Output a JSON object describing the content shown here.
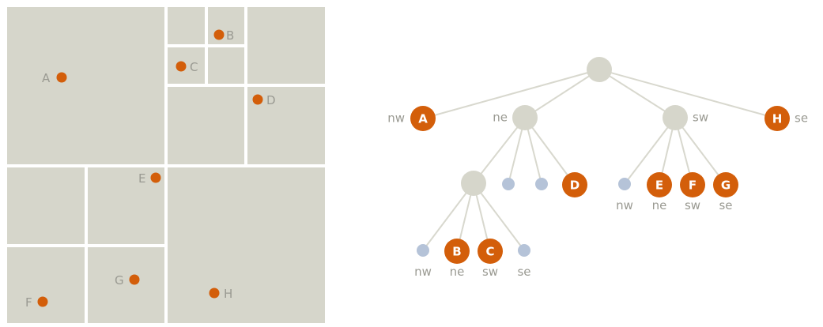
{
  "quadrant_map": {
    "points": [
      {
        "id": "A",
        "label": "A"
      },
      {
        "id": "B",
        "label": "B"
      },
      {
        "id": "C",
        "label": "C"
      },
      {
        "id": "D",
        "label": "D"
      },
      {
        "id": "E",
        "label": "E"
      },
      {
        "id": "F",
        "label": "F"
      },
      {
        "id": "G",
        "label": "G"
      },
      {
        "id": "H",
        "label": "H"
      }
    ],
    "colors": {
      "cell": "#d6d6cb",
      "point": "#d35e0a",
      "label": "#9a9a92",
      "divider": "#ffffff"
    }
  },
  "quadtree": {
    "root": {
      "children": [
        "nw",
        "ne",
        "sw",
        "se"
      ]
    },
    "top_level": [
      {
        "id": "A",
        "label": "A",
        "quadrant": "nw"
      },
      {
        "id": "ne",
        "label": "",
        "quadrant": "ne"
      },
      {
        "id": "sw",
        "label": "",
        "quadrant": "sw"
      },
      {
        "id": "H",
        "label": "H",
        "quadrant": "se"
      }
    ],
    "quadrant_labels": {
      "nw": "nw",
      "ne": "ne",
      "sw": "sw",
      "se": "se"
    },
    "ne_children": [
      {
        "id": "ne-nw",
        "kind": "internal"
      },
      {
        "id": "ne-ne",
        "kind": "empty"
      },
      {
        "id": "ne-sw",
        "kind": "empty"
      },
      {
        "id": "D",
        "label": "D",
        "kind": "point"
      }
    ],
    "sw_children": [
      {
        "id": "sw-nw",
        "kind": "empty",
        "caption": "nw"
      },
      {
        "id": "E",
        "label": "E",
        "kind": "point",
        "caption": "ne"
      },
      {
        "id": "F",
        "label": "F",
        "kind": "point",
        "caption": "sw"
      },
      {
        "id": "G",
        "label": "G",
        "kind": "point",
        "caption": "se"
      }
    ],
    "ne_nw_children": [
      {
        "id": "ne-nw-nw",
        "kind": "empty",
        "caption": "nw"
      },
      {
        "id": "B",
        "label": "B",
        "kind": "point",
        "caption": "ne"
      },
      {
        "id": "C",
        "label": "C",
        "kind": "point",
        "caption": "sw"
      },
      {
        "id": "ne-nw-se",
        "kind": "empty",
        "caption": "se"
      }
    ],
    "colors": {
      "internal": "#d6d6cb",
      "empty": "#b5c3d8",
      "point": "#d35e0a",
      "edge": "#d8d8ce"
    }
  }
}
